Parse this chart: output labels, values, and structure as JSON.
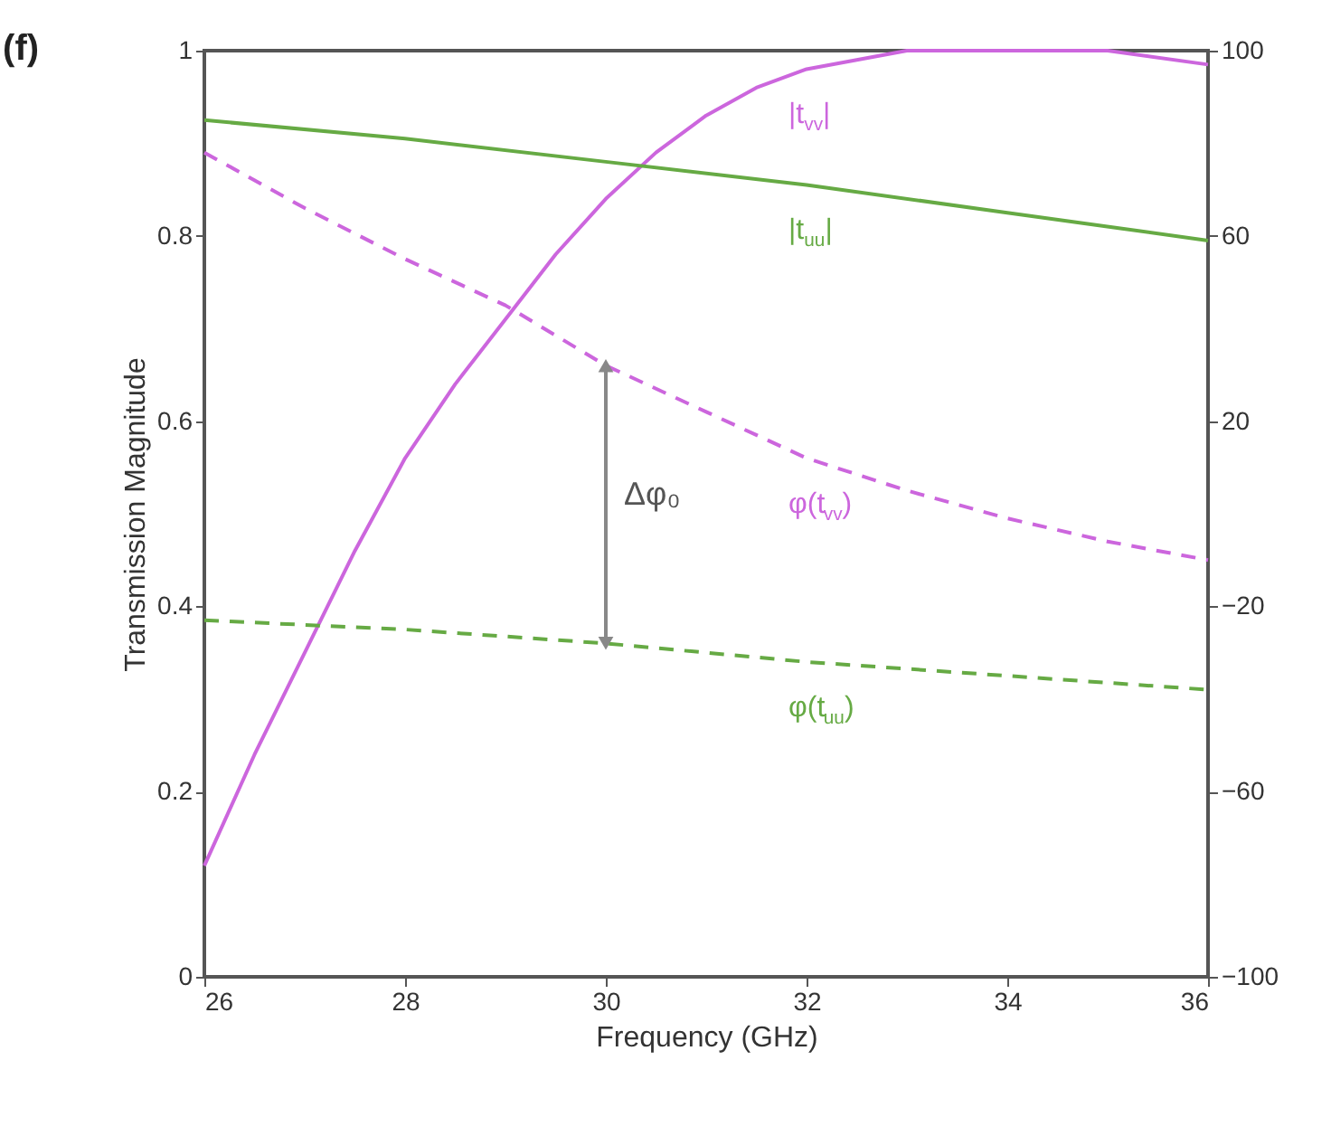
{
  "chart_data": {
    "type": "line",
    "title": "(f)",
    "xlabel": "Frequency (GHz)",
    "ylabel": "Transmission Magnitude",
    "xlim": [
      26,
      36
    ],
    "xticks": [
      26,
      28,
      30,
      32,
      34,
      36
    ],
    "ylim": [
      0,
      1
    ],
    "yticks": [
      0,
      0.2,
      0.4,
      0.6,
      0.8,
      1
    ],
    "y2lim": [
      -100,
      100
    ],
    "y2ticks": [
      -100,
      -60,
      -20,
      20,
      60,
      100
    ],
    "grid": false,
    "marker": "none",
    "series": [
      {
        "name": "|t$_{vv}$|",
        "color": "#cc66dd",
        "line_style": "solid",
        "x": [
          26,
          26.5,
          27,
          27.5,
          28,
          28.5,
          29,
          29.5,
          30,
          30.5,
          31,
          31.5,
          32,
          32.5,
          33,
          33.5,
          34,
          35,
          36
        ],
        "values": [
          0.12,
          0.24,
          0.35,
          0.46,
          0.56,
          0.64,
          0.71,
          0.78,
          0.84,
          0.89,
          0.93,
          0.96,
          0.98,
          0.99,
          1.0,
          1.0,
          1.0,
          1.0,
          0.985
        ]
      },
      {
        "name": "|t$_{uu}$|",
        "color": "#66aa44",
        "line_style": "solid",
        "x": [
          26,
          28,
          30,
          32,
          34,
          36
        ],
        "values": [
          0.925,
          0.905,
          0.88,
          0.855,
          0.825,
          0.795
        ]
      },
      {
        "name": "φ(t$_{vv}$)",
        "color": "#cc66dd",
        "line_style": "dashed",
        "axis": "y2",
        "x": [
          26,
          27,
          28,
          29,
          30,
          31,
          32,
          33,
          34,
          35,
          36
        ],
        "values": [
          78,
          66,
          55,
          45,
          32,
          22,
          12,
          5,
          -1,
          -6,
          -10
        ]
      },
      {
        "name": "φ(t$_{uu}$)",
        "color": "#66aa44",
        "line_style": "dashed",
        "axis": "y2",
        "x": [
          26,
          28,
          30,
          32,
          34,
          36
        ],
        "values": [
          -23,
          -25,
          -28,
          -32,
          -35,
          -38
        ]
      },
      {
        "name": "Δφ₀",
        "color": "#888888",
        "line_style": "solid",
        "marker": "triangle",
        "axis": "y2",
        "x": [
          30,
          30
        ],
        "values": [
          32,
          -28
        ]
      }
    ]
  }
}
